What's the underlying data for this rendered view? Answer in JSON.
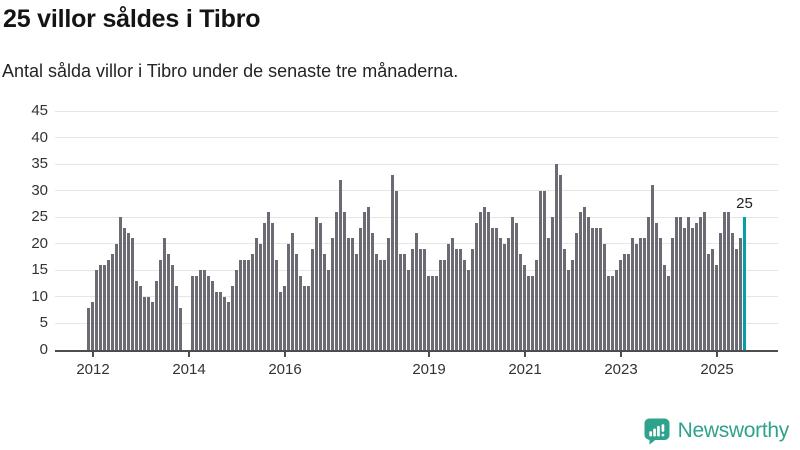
{
  "header": {
    "title": "25 villor såldes i Tibro",
    "subtitle": "Antal sålda villor i Tibro under de senaste tre månaderna."
  },
  "chart_data": {
    "type": "bar",
    "title": "25 villor såldes i Tibro",
    "subtitle": "Antal sålda villor i Tibro under de senaste tre månaderna.",
    "xlabel": "",
    "ylabel": "",
    "ylim": [
      0,
      45
    ],
    "grid": true,
    "y_ticks": [
      0,
      5,
      10,
      15,
      20,
      25,
      30,
      35,
      40,
      45
    ],
    "x_tick_years": [
      "2012",
      "2014",
      "2016",
      "2019",
      "2021",
      "2023",
      "2025"
    ],
    "period_start": "2011-11",
    "period_end": "2025-08",
    "annotation_label": "25",
    "highlight_value": 25,
    "values": [
      8,
      9,
      15,
      16,
      16,
      17,
      18,
      20,
      25,
      23,
      22,
      21,
      13,
      12,
      10,
      10,
      9,
      13,
      17,
      21,
      18,
      16,
      12,
      8,
      0,
      0,
      14,
      14,
      15,
      15,
      14,
      13,
      11,
      11,
      10,
      9,
      12,
      15,
      17,
      17,
      17,
      18,
      21,
      20,
      24,
      26,
      24,
      17,
      11,
      12,
      20,
      22,
      18,
      14,
      12,
      12,
      19,
      25,
      24,
      18,
      15,
      21,
      26,
      32,
      26,
      21,
      21,
      18,
      23,
      26,
      27,
      22,
      18,
      17,
      17,
      21,
      33,
      30,
      18,
      18,
      15,
      19,
      22,
      19,
      19,
      14,
      14,
      14,
      17,
      17,
      20,
      21,
      19,
      19,
      17,
      15,
      19,
      24,
      26,
      27,
      26,
      23,
      23,
      21,
      20,
      21,
      25,
      24,
      18,
      16,
      14,
      14,
      17,
      30,
      30,
      21,
      25,
      35,
      33,
      19,
      15,
      17,
      22,
      26,
      27,
      25,
      23,
      23,
      23,
      20,
      14,
      14,
      15,
      17,
      18,
      18,
      21,
      20,
      21,
      21,
      25,
      31,
      24,
      21,
      16,
      14,
      21,
      25,
      25,
      23,
      25,
      23,
      24,
      25,
      26,
      18,
      19,
      16,
      22,
      26,
      26,
      22,
      19,
      21,
      25
    ]
  },
  "colors": {
    "bar": "#6B6B73",
    "accent": "#00A1A9",
    "grid": "#E6E6E6",
    "axis": "#4D4D4D",
    "text": "#333333",
    "logo": "#2FA28E"
  },
  "footer": {
    "brand": "Newsworthy"
  }
}
